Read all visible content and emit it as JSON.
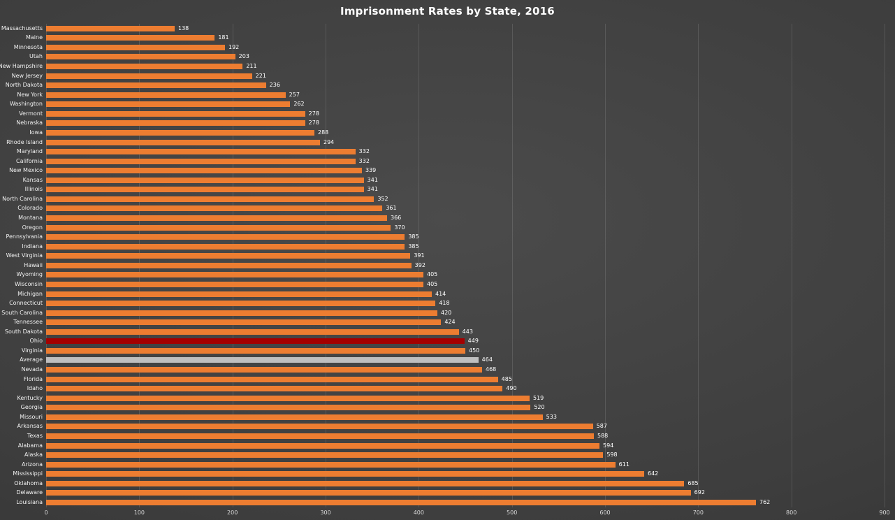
{
  "title": "Imprisonment Rates by State, 2016",
  "chart_data": {
    "type": "bar",
    "orientation": "horizontal",
    "title": "Imprisonment Rates by State, 2016",
    "categories": [
      "Massachusetts",
      "Maine",
      "Minnesota",
      "Utah",
      "New Hampshire",
      "New Jersey",
      "North Dakota",
      "New York",
      "Washington",
      "Vermont",
      "Nebraska",
      "Iowa",
      "Rhode Island",
      "Maryland",
      "California",
      "New Mexico",
      "Kansas",
      "Illinois",
      "North Carolina",
      "Colorado",
      "Montana",
      "Oregon",
      "Pennsylvania",
      "Indiana",
      "West Virginia",
      "Hawaii",
      "Wyoming",
      "Wisconsin",
      "Michigan",
      "Connecticut",
      "South Carolina",
      "Tennessee",
      "South Dakota",
      "Ohio",
      "Virginia",
      "Average",
      "Nevada",
      "Florida",
      "Idaho",
      "Kentucky",
      "Georgia",
      "Missouri",
      "Arkansas",
      "Texas",
      "Alabama",
      "Alaska",
      "Arizona",
      "Mississippi",
      "Oklahoma",
      "Delaware",
      "Louisiana"
    ],
    "values": [
      138,
      181,
      192,
      203,
      211,
      221,
      236,
      257,
      262,
      278,
      278,
      288,
      294,
      332,
      332,
      339,
      341,
      341,
      352,
      361,
      366,
      370,
      385,
      385,
      391,
      392,
      405,
      405,
      414,
      418,
      420,
      424,
      443,
      449,
      450,
      464,
      468,
      485,
      490,
      519,
      520,
      533,
      587,
      588,
      594,
      598,
      611,
      642,
      685,
      692,
      762
    ],
    "xlim": [
      0,
      900
    ],
    "x_ticks": [
      0,
      100,
      200,
      300,
      400,
      500,
      600,
      700,
      800,
      900
    ],
    "grid": true,
    "legend": "none",
    "bar_color": "#ED7D31",
    "highlight": {
      "category": "Ohio",
      "color": "#A40000"
    },
    "secondary_highlight": {
      "category": "Average",
      "color": "#BFBFBF"
    },
    "label_color": "#FFFFFF",
    "background": "#3D3D3D"
  }
}
